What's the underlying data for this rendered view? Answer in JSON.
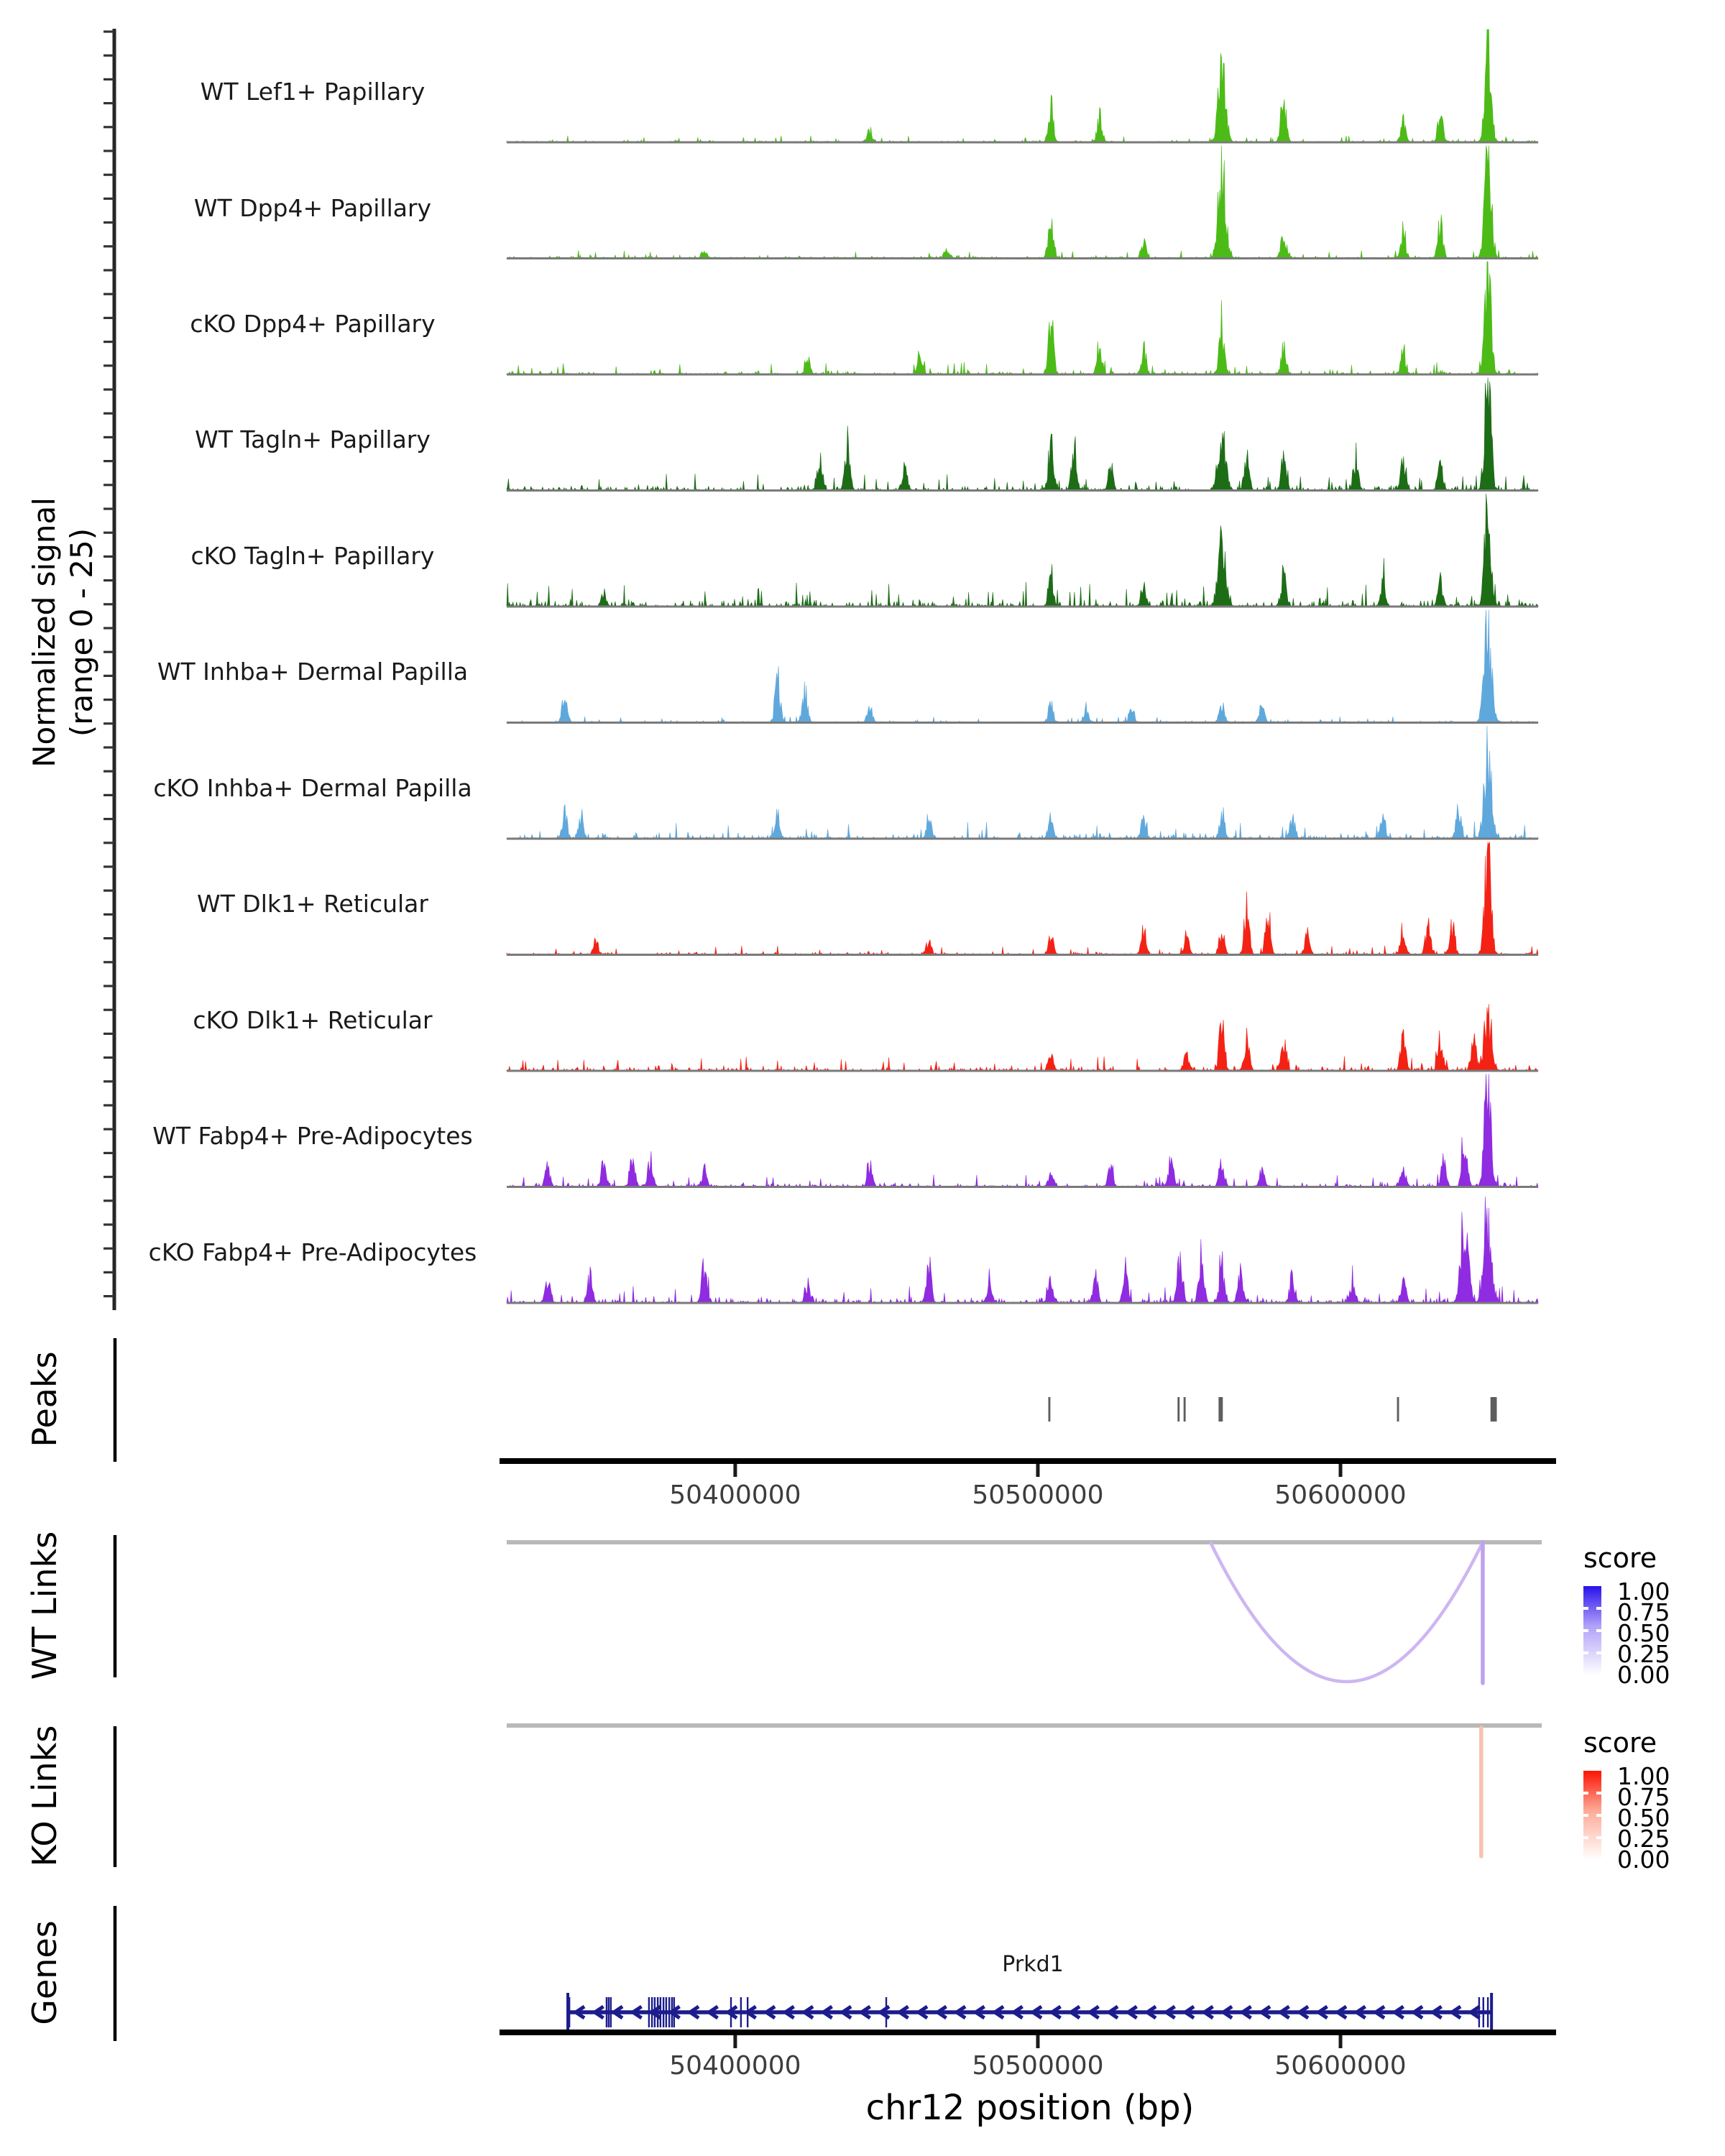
{
  "y_axis": {
    "line1": "Normalized signal",
    "line2": "(range 0 - 25)"
  },
  "section_labels": {
    "peaks": "Peaks",
    "wt_links": "WT Links",
    "ko_links": "KO Links",
    "genes": "Genes"
  },
  "legends": {
    "wt": {
      "title": "score",
      "labels": [
        "1.00",
        "0.75",
        "0.50",
        "0.25",
        "0.00"
      ],
      "top_color": "#2912ec",
      "mid_color": "#b2a2f8"
    },
    "ko": {
      "title": "score",
      "labels": [
        "1.00",
        "0.75",
        "0.50",
        "0.25",
        "0.00"
      ],
      "top_color": "#fb1405",
      "mid_color": "#fdab98"
    }
  },
  "chart_data": {
    "type": "area",
    "title": "",
    "xlabel": "chr12 position (bp)",
    "ylabel": "Normalized signal (range 0 - 25)",
    "grid": false,
    "genome": {
      "chrom": "chr12",
      "region": [
        50324500,
        50665300
      ],
      "axis_title": "chr12 position (bp)",
      "ticks": [
        {
          "pos": 50400000,
          "label": "50400000"
        },
        {
          "pos": 50500000,
          "label": "50500000"
        },
        {
          "pos": 50600000,
          "label": "50600000"
        }
      ]
    },
    "y_range_per_track": [
      0,
      25
    ],
    "tracks": [
      {
        "label": "WT Lef1+ Papillary",
        "color": "#4cbb17",
        "noise": 0.022,
        "peaks": [
          [
            50444400,
            0.1
          ],
          [
            50504300,
            0.3
          ],
          [
            50520400,
            0.2
          ],
          [
            50560800,
            0.6
          ],
          [
            50581200,
            0.4
          ],
          [
            50620700,
            0.18
          ],
          [
            50633000,
            0.25
          ],
          [
            50648700,
            0.92
          ]
        ]
      },
      {
        "label": "WT Dpp4+ Papillary",
        "color": "#4cbb17",
        "noise": 0.026,
        "peaks": [
          [
            50389800,
            0.07
          ],
          [
            50470000,
            0.08
          ],
          [
            50504300,
            0.42
          ],
          [
            50535000,
            0.12
          ],
          [
            50560800,
            0.72
          ],
          [
            50581200,
            0.22
          ],
          [
            50620700,
            0.22
          ],
          [
            50633000,
            0.28
          ],
          [
            50648700,
            0.95
          ]
        ]
      },
      {
        "label": "cKO Dpp4+ Papillary",
        "color": "#4cbb17",
        "noise": 0.04,
        "peaks": [
          [
            50424000,
            0.12
          ],
          [
            50461100,
            0.18
          ],
          [
            50504300,
            0.45
          ],
          [
            50520400,
            0.25
          ],
          [
            50535000,
            0.22
          ],
          [
            50560800,
            0.42
          ],
          [
            50581200,
            0.2
          ],
          [
            50620700,
            0.2
          ],
          [
            50648700,
            1.0
          ]
        ]
      },
      {
        "label": "WT Tagln+ Papillary",
        "color": "#1c6d16",
        "noise": 0.055,
        "peaks": [
          [
            50428000,
            0.3
          ],
          [
            50437000,
            0.38
          ],
          [
            50456000,
            0.2
          ],
          [
            50504300,
            0.4
          ],
          [
            50512000,
            0.33
          ],
          [
            50524000,
            0.2
          ],
          [
            50560800,
            0.5
          ],
          [
            50569000,
            0.3
          ],
          [
            50581200,
            0.28
          ],
          [
            50605000,
            0.26
          ],
          [
            50620700,
            0.22
          ],
          [
            50633000,
            0.2
          ],
          [
            50648700,
            1.0
          ]
        ]
      },
      {
        "label": "cKO Tagln+ Papillary",
        "color": "#1c6d16",
        "noise": 0.08,
        "peaks": [
          [
            50356600,
            0.1
          ],
          [
            50504300,
            0.2
          ],
          [
            50535000,
            0.18
          ],
          [
            50560800,
            0.5
          ],
          [
            50581200,
            0.28
          ],
          [
            50614000,
            0.2
          ],
          [
            50633000,
            0.18
          ],
          [
            50648700,
            1.0
          ]
        ]
      },
      {
        "label": "WT Inhba+ Dermal Papilla",
        "color": "#5fa8dc",
        "noise": 0.02,
        "peaks": [
          [
            50343700,
            0.26
          ],
          [
            50414000,
            0.4
          ],
          [
            50423000,
            0.26
          ],
          [
            50444400,
            0.12
          ],
          [
            50504300,
            0.16
          ],
          [
            50516000,
            0.12
          ],
          [
            50531000,
            0.12
          ],
          [
            50560800,
            0.16
          ],
          [
            50574000,
            0.12
          ],
          [
            50648700,
            0.8
          ]
        ]
      },
      {
        "label": "cKO Inhba+ Dermal Papilla",
        "color": "#5fa8dc",
        "noise": 0.055,
        "peaks": [
          [
            50343700,
            0.2
          ],
          [
            50349000,
            0.18
          ],
          [
            50414000,
            0.2
          ],
          [
            50464000,
            0.15
          ],
          [
            50504300,
            0.16
          ],
          [
            50535000,
            0.15
          ],
          [
            50560800,
            0.2
          ],
          [
            50584000,
            0.18
          ],
          [
            50614000,
            0.2
          ],
          [
            50639000,
            0.25
          ],
          [
            50648700,
            0.72
          ]
        ]
      },
      {
        "label": "WT Dlk1+ Reticular",
        "color": "#f32215",
        "noise": 0.03,
        "peaks": [
          [
            50354000,
            0.1
          ],
          [
            50464000,
            0.12
          ],
          [
            50504300,
            0.15
          ],
          [
            50535000,
            0.2
          ],
          [
            50549000,
            0.15
          ],
          [
            50560800,
            0.22
          ],
          [
            50569000,
            0.42
          ],
          [
            50576000,
            0.35
          ],
          [
            50589000,
            0.15
          ],
          [
            50620700,
            0.22
          ],
          [
            50629000,
            0.28
          ],
          [
            50637000,
            0.24
          ],
          [
            50648700,
            0.9
          ]
        ]
      },
      {
        "label": "cKO Dlk1+ Reticular",
        "color": "#f32215",
        "noise": 0.05,
        "peaks": [
          [
            50504300,
            0.12
          ],
          [
            50549000,
            0.15
          ],
          [
            50560800,
            0.42
          ],
          [
            50569000,
            0.28
          ],
          [
            50581200,
            0.22
          ],
          [
            50620700,
            0.32
          ],
          [
            50633000,
            0.25
          ],
          [
            50644000,
            0.3
          ],
          [
            50648700,
            0.5
          ]
        ]
      },
      {
        "label": "WT Fabp4+ Pre-Adipocytes",
        "color": "#8f2be0",
        "noise": 0.04,
        "peaks": [
          [
            50338000,
            0.16
          ],
          [
            50356600,
            0.2
          ],
          [
            50366000,
            0.26
          ],
          [
            50372000,
            0.22
          ],
          [
            50389800,
            0.14
          ],
          [
            50444400,
            0.15
          ],
          [
            50504300,
            0.12
          ],
          [
            50524000,
            0.18
          ],
          [
            50544000,
            0.22
          ],
          [
            50560800,
            0.22
          ],
          [
            50574000,
            0.15
          ],
          [
            50620700,
            0.18
          ],
          [
            50634000,
            0.2
          ],
          [
            50641000,
            0.4
          ],
          [
            50648700,
            1.0
          ]
        ]
      },
      {
        "label": "cKO Fabp4+ Pre-Adipocytes",
        "color": "#8f2be0",
        "noise": 0.055,
        "peaks": [
          [
            50338000,
            0.18
          ],
          [
            50352000,
            0.22
          ],
          [
            50389800,
            0.32
          ],
          [
            50424000,
            0.15
          ],
          [
            50464000,
            0.28
          ],
          [
            50484000,
            0.2
          ],
          [
            50504300,
            0.18
          ],
          [
            50519000,
            0.22
          ],
          [
            50529000,
            0.28
          ],
          [
            50547000,
            0.42
          ],
          [
            50554000,
            0.38
          ],
          [
            50560800,
            0.32
          ],
          [
            50567000,
            0.28
          ],
          [
            50584000,
            0.2
          ],
          [
            50604000,
            0.2
          ],
          [
            50620700,
            0.22
          ],
          [
            50641000,
            0.7
          ],
          [
            50648700,
            0.82
          ]
        ]
      }
    ],
    "peaks": {
      "color": "#5e5e5e",
      "marks": [
        {
          "pos": 50503800,
          "width_bp": 700
        },
        {
          "pos": 50546500,
          "width_bp": 700
        },
        {
          "pos": 50548500,
          "width_bp": 700
        },
        {
          "pos": 50560400,
          "width_bp": 1400
        },
        {
          "pos": 50619000,
          "width_bp": 700
        },
        {
          "pos": 50650600,
          "width_bp": 2100
        }
      ]
    },
    "links": {
      "wt": {
        "arc_color": "#cdb6f2",
        "line_color": "#bfa2ee",
        "arcs": [
          {
            "from": 50557000,
            "to": 50647000,
            "score": 0.25
          }
        ],
        "verticals": [
          {
            "pos": 50647000,
            "score": 0.3
          }
        ]
      },
      "ko": {
        "arc_color": "#f8c2b0",
        "line_color": "#f8c2b0",
        "arcs": [],
        "verticals": [
          {
            "pos": 50646500,
            "score": 0.3
          }
        ]
      }
    },
    "genes": [
      {
        "name": "Prkd1",
        "strand": "-",
        "start": 50344700,
        "end": 50649900,
        "color": "#1c1c8c",
        "exon_ticks": [
          50345200,
          50357500,
          50358200,
          50358900,
          50371500,
          50372500,
          50373400,
          50374400,
          50375300,
          50376300,
          50377200,
          50378200,
          50379100,
          50379800,
          50398600,
          50401900,
          50404100,
          50449900,
          50645800,
          50647200,
          50648700,
          50649900
        ]
      }
    ]
  }
}
